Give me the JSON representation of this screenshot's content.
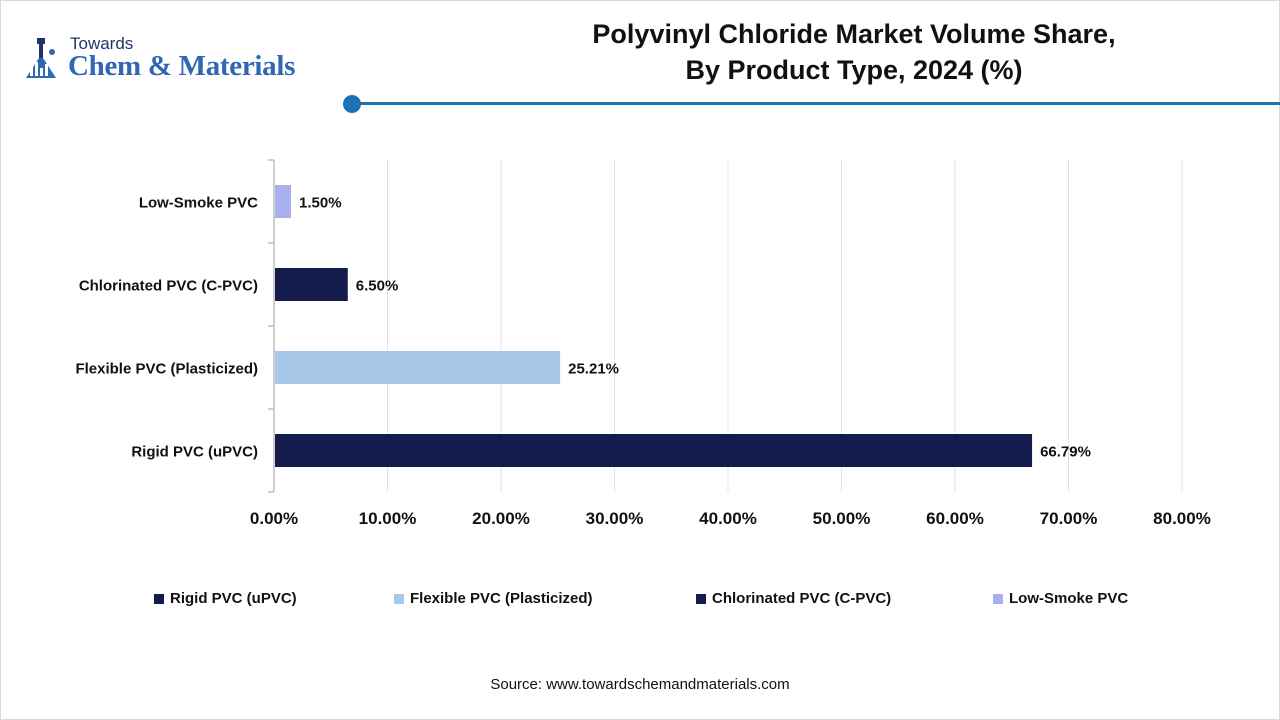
{
  "brand": {
    "top": "Towards",
    "main": "Chem & Materials"
  },
  "title_line1": "Polyvinyl Chloride Market Volume Share,",
  "title_line2": "By Product Type, 2024 (%)",
  "source": "Source: www.towardschemandmaterials.com",
  "chart_data": {
    "type": "bar",
    "orientation": "horizontal",
    "categories": [
      "Low-Smoke PVC",
      "Chlorinated PVC (C-PVC)",
      "Flexible PVC (Plasticized)",
      "Rigid PVC (uPVC)"
    ],
    "values": [
      1.5,
      6.5,
      25.21,
      66.79
    ],
    "value_labels": [
      "1.50%",
      "6.50%",
      "25.21%",
      "66.79%"
    ],
    "colors": [
      "#a9b0f0",
      "#141c4e",
      "#a8c8ea",
      "#141c4e"
    ],
    "xlim": [
      0,
      80
    ],
    "xticks": [
      0,
      10,
      20,
      30,
      40,
      50,
      60,
      70,
      80
    ],
    "xtick_labels": [
      "0.00%",
      "10.00%",
      "20.00%",
      "30.00%",
      "40.00%",
      "50.00%",
      "60.00%",
      "70.00%",
      "80.00%"
    ],
    "grid": true,
    "legend": {
      "placement": "bottom",
      "items": [
        {
          "label": "Rigid PVC (uPVC)",
          "color": "#141c4e"
        },
        {
          "label": "Flexible PVC (Plasticized)",
          "color": "#a8c8ea"
        },
        {
          "label": "Chlorinated PVC (C-PVC)",
          "color": "#141c4e"
        },
        {
          "label": "Low-Smoke PVC",
          "color": "#a9b0f0"
        }
      ]
    }
  },
  "accent_color": "#1c73b4"
}
